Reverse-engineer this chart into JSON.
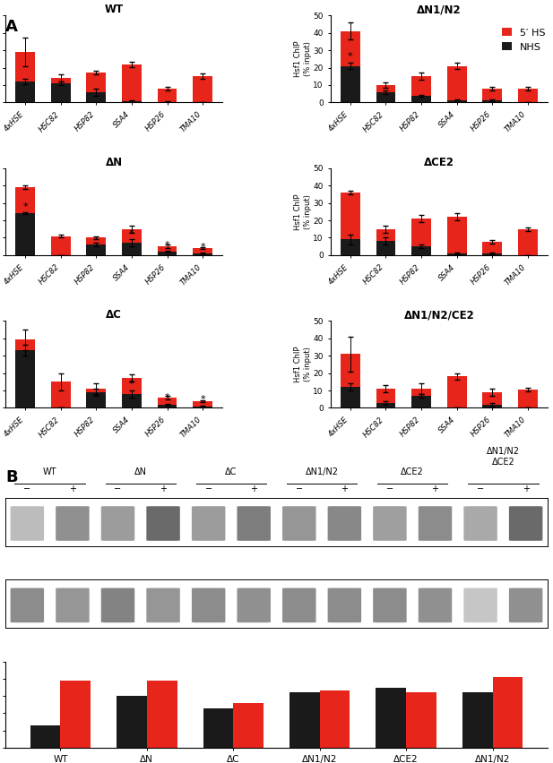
{
  "panel_A_subplots": [
    {
      "title": "WT",
      "categories": [
        "4xHSE",
        "HSC82",
        "HSP82",
        "SSA4",
        "HSP26",
        "TMA10"
      ],
      "red_values": [
        29,
        14,
        17,
        22,
        8,
        15
      ],
      "black_values": [
        12,
        11,
        6,
        1,
        0.5,
        0
      ],
      "red_errors": [
        8,
        2,
        1,
        1.5,
        1,
        1.5
      ],
      "black_errors": [
        1.5,
        1,
        2,
        0.5,
        0.3,
        0
      ],
      "stars": [],
      "row": 0,
      "col": 0
    },
    {
      "title": "ΔN1/N2",
      "categories": [
        "4xHSE",
        "HSC82",
        "HSP82",
        "SSA4",
        "HSP26",
        "TMA10"
      ],
      "red_values": [
        41,
        10,
        15,
        21,
        8,
        8
      ],
      "black_values": [
        21,
        6,
        4,
        1.5,
        1.5,
        0
      ],
      "red_errors": [
        5,
        1.5,
        2,
        2,
        1,
        1
      ],
      "black_errors": [
        2,
        1,
        0.5,
        0.5,
        0.5,
        0
      ],
      "stars": [
        0
      ],
      "row": 0,
      "col": 1
    },
    {
      "title": "ΔN",
      "categories": [
        "4xHSE",
        "HSC82",
        "HSP82",
        "SSA4",
        "HSP26",
        "TMA10"
      ],
      "red_values": [
        39,
        11,
        10,
        15,
        5,
        4
      ],
      "black_values": [
        24,
        0,
        6,
        7,
        2,
        1
      ],
      "red_errors": [
        1,
        1,
        1,
        2,
        1,
        0.5
      ],
      "black_errors": [
        0.5,
        0,
        1,
        2,
        0.5,
        0.5
      ],
      "stars": [
        0,
        3,
        4,
        5
      ],
      "row": 1,
      "col": 0
    },
    {
      "title": "ΔCE2",
      "categories": [
        "4xHSE",
        "HSC82",
        "HSP82",
        "SSA4",
        "HSP26",
        "TMA10"
      ],
      "red_values": [
        36,
        15,
        21,
        22,
        7.5,
        15
      ],
      "black_values": [
        9,
        8,
        5,
        1,
        1,
        0
      ],
      "red_errors": [
        1,
        2,
        2,
        2,
        1,
        1
      ],
      "black_errors": [
        3,
        2,
        1,
        0.5,
        0.5,
        0
      ],
      "stars": [],
      "row": 1,
      "col": 1
    },
    {
      "title": "ΔC",
      "categories": [
        "4xHSE",
        "HSC82",
        "HSP82",
        "SSA4",
        "HSP26",
        "TMA10"
      ],
      "red_values": [
        39,
        15,
        11,
        17,
        6,
        4
      ],
      "black_values": [
        33,
        0,
        9,
        8,
        2,
        1
      ],
      "red_errors": [
        6,
        5,
        3,
        2,
        1,
        0.5
      ],
      "black_errors": [
        3,
        0,
        2,
        2,
        0.5,
        0.5
      ],
      "stars": [
        3,
        4,
        5
      ],
      "row": 2,
      "col": 0
    },
    {
      "title": "ΔN1/N2/CE2",
      "categories": [
        "4xHSE",
        "HSC82",
        "HSP82",
        "SSA4",
        "HSP26",
        "TMA10"
      ],
      "red_values": [
        31,
        11,
        11,
        18,
        9,
        10.5
      ],
      "black_values": [
        12,
        3,
        7,
        0,
        2,
        0
      ],
      "red_errors": [
        10,
        2,
        3,
        2,
        2,
        1
      ],
      "black_errors": [
        2,
        1,
        1,
        0,
        1,
        0
      ],
      "stars": [],
      "row": 2,
      "col": 1
    }
  ],
  "panel_B": {
    "bar_categories": [
      "WT",
      "ΔN",
      "ΔC",
      "ΔN1/N2",
      "ΔCE2",
      "ΔN1/N2\nΔCE2"
    ],
    "black_values": [
      1.3,
      3.0,
      2.3,
      3.2,
      3.5,
      3.2
    ],
    "red_values": [
      3.9,
      3.9,
      2.6,
      3.3,
      3.2,
      4.1
    ],
    "ssa_intensities": [
      0.35,
      0.58,
      0.52,
      0.78,
      0.52,
      0.68,
      0.55,
      0.62,
      0.5,
      0.6,
      0.45,
      0.78
    ],
    "scr1_intensities": [
      0.6,
      0.55,
      0.65,
      0.55,
      0.6,
      0.58,
      0.6,
      0.6,
      0.6,
      0.58,
      0.3,
      0.58
    ],
    "conditions": [
      "WT",
      "ΔN",
      "ΔC",
      "ΔN1/N2",
      "ΔCE2",
      "ΔN1/N2\nΔCE2"
    ]
  },
  "colors": {
    "red": "#E8251A",
    "black": "#1A1A1A"
  },
  "legend_labels": [
    "5′ HS",
    "NHS"
  ]
}
